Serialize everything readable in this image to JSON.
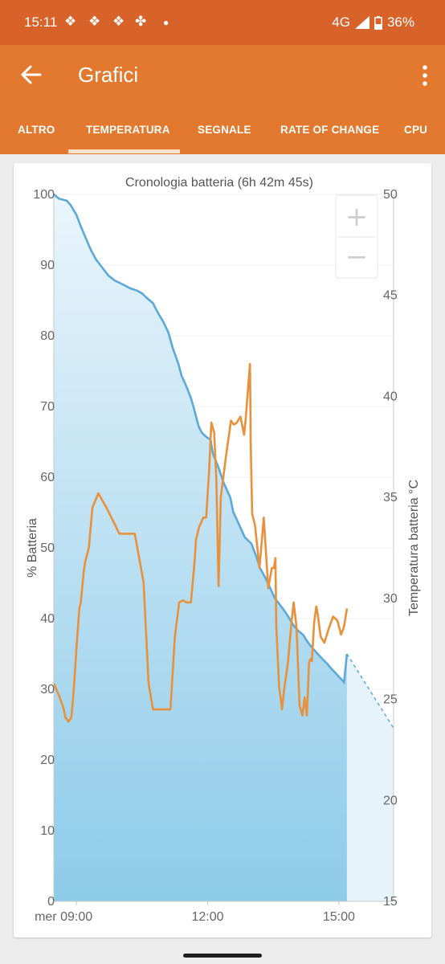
{
  "status_bar": {
    "time": "15:11",
    "network": "4G",
    "battery": "36%"
  },
  "app_bar": {
    "title": "Grafici"
  },
  "tabs": [
    {
      "label": "ALTRO",
      "selected": false
    },
    {
      "label": "TEMPERATURA",
      "selected": true
    },
    {
      "label": "SEGNALE",
      "selected": false
    },
    {
      "label": "RATE OF CHANGE",
      "selected": false
    },
    {
      "label": "CPU",
      "selected": false
    }
  ],
  "zoom": {
    "in": "+",
    "out": "−"
  },
  "chart_data": {
    "type": "line",
    "title": "Cronologia batteria (6h 42m 45s)",
    "ylabel": "% Batteria",
    "y2label": "Temperatura batteria °C",
    "ylim": [
      0,
      100
    ],
    "y2lim": [
      15,
      50
    ],
    "x_ticks": [
      "mer 09:00",
      "12:00",
      "15:00"
    ],
    "y_ticks": [
      "0",
      "10",
      "20",
      "30",
      "40",
      "50",
      "60",
      "70",
      "80",
      "90",
      "100"
    ],
    "y2_ticks": [
      "15",
      "20",
      "25",
      "30",
      "35",
      "40",
      "45",
      "50"
    ],
    "colors": {
      "battery": "#5aa9d9",
      "temperature": "#e8903a",
      "fill_top": "#eaf5fc",
      "fill_bottom": "#8dcbe9"
    },
    "series": [
      {
        "axis": "left",
        "x": [
          "08:29",
          "08:36",
          "08:47",
          "08:52",
          "09:00",
          "09:06",
          "09:13",
          "09:20",
          "09:27",
          "09:35",
          "09:44",
          "09:53",
          "10:05",
          "10:14",
          "10:23",
          "10:30",
          "10:36",
          "10:45",
          "10:52",
          "10:59",
          "11:06",
          "11:12",
          "11:20",
          "11:24",
          "11:31",
          "11:37",
          "11:41",
          "11:45",
          "11:48",
          "11:52",
          "11:58",
          "12:04",
          "12:07",
          "12:14",
          "12:22",
          "12:31",
          "12:35",
          "12:43",
          "12:51",
          "13:00",
          "13:07",
          "13:12",
          "13:18",
          "13:25",
          "13:32",
          "13:38",
          "13:44",
          "13:51",
          "13:58",
          "14:04",
          "14:11",
          "14:17",
          "14:24",
          "14:31",
          "14:38",
          "14:44",
          "14:49",
          "14:58",
          "15:07",
          "15:11"
        ],
        "values": [
          100,
          99.4,
          99.1,
          98.5,
          97.1,
          95.5,
          93.8,
          92.1,
          90.8,
          89.7,
          88.5,
          87.8,
          87.2,
          86.7,
          86.4,
          86.0,
          85.4,
          84.6,
          83.2,
          82.0,
          80.5,
          78.3,
          76.0,
          74.4,
          72.8,
          71.2,
          69.8,
          68.2,
          67.1,
          66.3,
          65.7,
          65.3,
          63.4,
          61.6,
          59.2,
          57.1,
          55.1,
          53.3,
          51.5,
          50.6,
          48.7,
          47.1,
          46.0,
          44.5,
          42.9,
          42.1,
          41.3,
          40.2,
          39.0,
          38.3,
          37.7,
          36.7,
          35.8,
          35.0,
          34.2,
          33.6,
          33.0,
          32.0,
          31.0,
          35
        ]
      },
      {
        "axis": "left",
        "style": "dashed",
        "x": [
          "15:11",
          "16:15"
        ],
        "values": [
          35,
          24.5
        ]
      },
      {
        "axis": "right",
        "x": [
          "08:29",
          "08:37",
          "08:42",
          "08:45",
          "08:49",
          "08:53",
          "08:56",
          "09:01",
          "09:04",
          "09:06",
          "09:10",
          "09:12",
          "09:17",
          "09:22",
          "09:30",
          "09:41",
          "09:59",
          "10:20",
          "10:32",
          "10:39",
          "10:45",
          "10:55",
          "10:57",
          "10:59",
          "11:03",
          "11:09",
          "11:15",
          "11:21",
          "11:26",
          "11:31",
          "11:37",
          "11:42",
          "11:44",
          "11:48",
          "11:54",
          "11:58",
          "12:02",
          "12:05",
          "12:09",
          "12:12",
          "12:15",
          "12:18",
          "12:25",
          "12:32",
          "12:36",
          "12:40",
          "12:45",
          "12:50",
          "12:52",
          "12:58",
          "12:59",
          "13:01",
          "13:05",
          "13:11",
          "13:17",
          "13:23",
          "13:28",
          "13:31",
          "13:33",
          "13:34",
          "13:38",
          "13:40",
          "13:42",
          "13:45",
          "13:50",
          "13:55",
          "13:58",
          "14:02",
          "14:06",
          "14:10",
          "14:13",
          "14:16",
          "14:19",
          "14:21",
          "14:23",
          "14:26",
          "14:29",
          "14:31",
          "14:35",
          "14:40",
          "14:46",
          "14:52",
          "14:58",
          "15:03",
          "15:07",
          "15:11"
        ],
        "values": [
          25.8,
          25.1,
          24.6,
          24.1,
          23.9,
          24.1,
          25.3,
          28.0,
          29.5,
          29.8,
          31.3,
          31.8,
          32.5,
          34.5,
          35.2,
          34.5,
          33.2,
          33.2,
          30.8,
          25.8,
          24.5,
          24.5,
          24.5,
          24.5,
          24.5,
          24.5,
          28.1,
          29.8,
          29.9,
          29.8,
          29.8,
          31.8,
          32.9,
          33.5,
          34.0,
          34.0,
          36.3,
          38.7,
          38.2,
          35.8,
          30.6,
          35.0,
          37.0,
          38.8,
          38.6,
          38.7,
          39.0,
          38.1,
          38.8,
          41.6,
          37.8,
          34.2,
          33.6,
          31.5,
          34.0,
          30.5,
          31.5,
          31.5,
          32.0,
          28.7,
          25.6,
          25.1,
          24.5,
          25.5,
          26.8,
          28.8,
          29.8,
          28.5,
          24.7,
          24.2,
          25.1,
          24.2,
          26.8,
          27.0,
          26.9,
          28.8,
          29.6,
          29.2,
          28.1,
          27.8,
          28.5,
          29.1,
          28.9,
          28.2,
          28.6,
          29.5
        ]
      }
    ]
  }
}
